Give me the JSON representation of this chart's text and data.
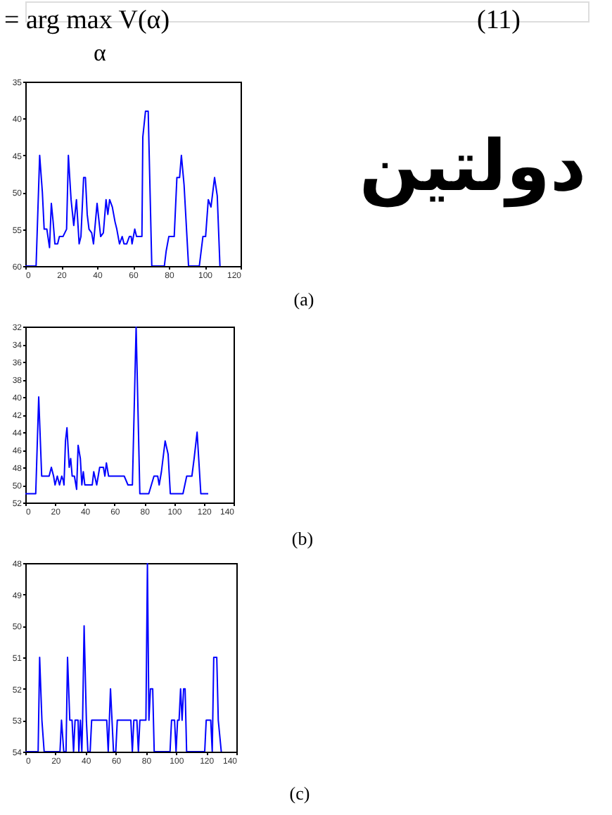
{
  "chart_data": [
    {
      "type": "other",
      "annotations": [
        "= arg max V(α)",
        "α",
        "(11)"
      ]
    },
    {
      "type": "line",
      "annotations": [
        "دولتين",
        "(a)"
      ],
      "x": [
        0,
        6,
        8,
        9.5,
        10.5,
        12,
        13.5,
        14.5,
        15.5,
        16.5,
        18,
        19,
        21,
        23,
        24,
        25.5,
        27,
        28.5,
        30,
        31,
        32.5,
        33.5,
        34.5,
        35.5,
        37,
        38,
        40,
        42,
        43.5,
        45,
        46,
        47,
        48.5,
        50,
        51,
        52.5,
        54,
        55,
        56.5,
        58,
        59,
        59.5,
        61,
        62,
        65,
        65.5,
        67,
        68.5,
        70.5,
        77.5,
        78.5,
        80,
        83,
        84.5,
        86,
        87,
        88.5,
        91,
        97,
        99,
        100.5,
        102,
        103.5,
        105.5,
        107,
        108.5
      ],
      "series": [
        {
          "color": "#0000ff",
          "values": [
            60,
            60,
            45,
            50,
            55,
            55,
            57.5,
            51.5,
            54,
            57,
            57,
            56,
            56,
            55,
            45,
            51,
            54.5,
            51,
            57,
            56,
            48,
            48,
            53,
            55,
            55.5,
            57,
            51.5,
            56,
            55.5,
            51,
            53,
            51,
            52,
            54,
            55,
            57,
            56,
            57,
            57,
            56,
            56,
            57,
            55,
            56,
            56,
            42.5,
            39,
            39,
            60,
            60,
            58,
            56,
            56,
            48,
            48,
            45,
            49,
            60,
            60,
            56,
            56,
            51,
            52,
            48,
            50.5,
            60
          ]
        }
      ],
      "xlim": [
        0,
        120
      ],
      "xticks": [
        0,
        20,
        40,
        60,
        80,
        100,
        120
      ],
      "ylim": [
        60,
        35
      ],
      "yticks": [
        35,
        40,
        45,
        50,
        55,
        60
      ],
      "line_style": "solid"
    },
    {
      "type": "line",
      "annotations": [
        "(b)"
      ],
      "x": [
        0,
        7,
        9,
        11,
        16,
        17.5,
        19,
        20,
        21.5,
        23,
        24.5,
        25.5,
        26,
        27,
        28,
        29.5,
        30.5,
        31.5,
        33,
        34.5,
        35.5,
        37,
        38,
        39,
        40,
        45,
        46,
        48,
        50,
        52.5,
        53.5,
        54.5,
        56,
        66.5,
        69,
        72,
        74.5,
        77,
        83,
        86.5,
        89,
        90,
        91.5,
        94,
        96,
        97.5,
        106,
        108.5,
        112,
        113.5,
        115.5,
        118,
        123
      ],
      "series": [
        {
          "color": "#0000ff",
          "values": [
            51,
            51,
            40,
            49,
            49,
            48,
            49,
            50,
            49,
            50,
            49,
            49.5,
            50,
            45,
            43.5,
            48,
            47,
            49,
            49,
            50.5,
            45.5,
            47,
            50,
            48.5,
            50,
            50,
            48.5,
            50,
            48,
            48,
            49,
            47.5,
            49,
            49,
            50,
            50,
            32,
            51,
            51,
            49,
            49,
            50,
            48.5,
            45,
            46.5,
            51,
            51,
            49,
            49,
            47,
            44,
            51,
            51
          ]
        }
      ],
      "xlim": [
        0,
        140
      ],
      "xticks": [
        0,
        20,
        40,
        60,
        80,
        100,
        120,
        140
      ],
      "ylim": [
        52,
        32
      ],
      "yticks": [
        32,
        34,
        36,
        38,
        40,
        42,
        44,
        46,
        48,
        50,
        52
      ],
      "line_style": "solid"
    },
    {
      "type": "line",
      "annotations": [
        "(c)"
      ],
      "x": [
        0,
        8.5,
        9.5,
        11,
        12.5,
        23,
        24,
        25.5,
        27,
        28,
        29.5,
        31,
        32,
        33,
        35,
        35.5,
        36.5,
        37.5,
        38,
        39,
        40.5,
        41.5,
        43,
        44,
        54,
        55,
        56.5,
        57.5,
        58.5,
        60,
        61,
        70,
        71,
        72,
        74,
        75,
        76,
        80,
        81,
        82,
        83,
        84.5,
        85.5,
        96,
        97,
        99,
        100,
        101,
        102,
        103,
        104,
        105,
        106,
        107,
        119,
        120,
        123,
        124,
        125,
        127,
        128,
        130
      ],
      "series": [
        {
          "color": "#0000ff",
          "values": [
            54,
            54,
            51,
            53,
            54,
            54,
            53,
            54,
            54,
            51,
            53,
            53,
            54,
            53,
            53,
            54,
            53,
            54,
            53,
            50,
            53,
            54,
            54,
            53,
            53,
            54,
            52,
            53,
            54,
            54,
            53,
            53,
            54,
            53,
            53,
            54,
            53,
            53,
            48,
            53,
            52,
            52,
            54,
            54,
            53,
            53,
            54,
            53,
            53,
            52,
            53,
            52,
            52,
            54,
            54,
            53,
            53,
            54,
            51,
            51,
            53,
            54
          ]
        }
      ],
      "xlim": [
        0,
        140
      ],
      "xticks": [
        0,
        20,
        40,
        60,
        80,
        100,
        120,
        140
      ],
      "ylim": [
        54,
        48
      ],
      "yticks": [
        48,
        49,
        50,
        51,
        52,
        53,
        54
      ],
      "line_style": "solid"
    }
  ]
}
